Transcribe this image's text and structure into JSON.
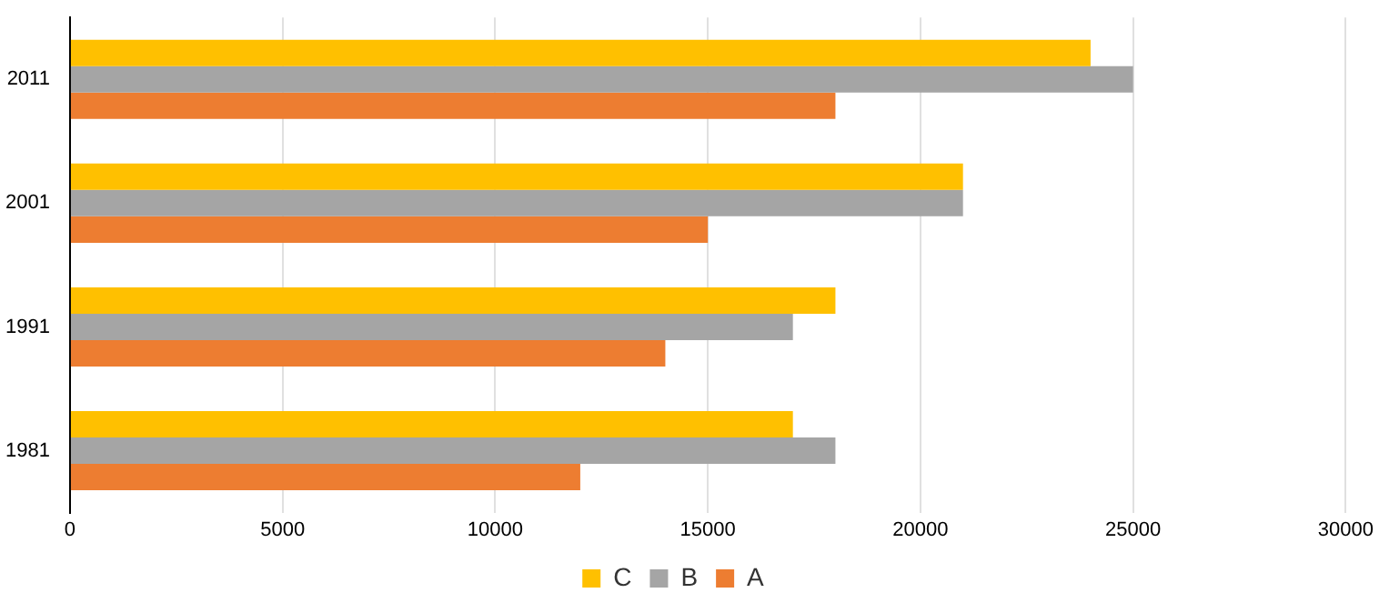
{
  "chart_data": {
    "type": "bar",
    "orientation": "horizontal",
    "categories": [
      "2011",
      "2001",
      "1991",
      "1981"
    ],
    "series": [
      {
        "name": "C",
        "color": "#ffc000",
        "values": [
          24000,
          21000,
          18000,
          17000
        ]
      },
      {
        "name": "B",
        "color": "#a5a5a5",
        "values": [
          25000,
          21000,
          17000,
          18000
        ]
      },
      {
        "name": "A",
        "color": "#ed7d31",
        "values": [
          18000,
          15000,
          14000,
          12000
        ]
      }
    ],
    "xlim": [
      0,
      30000
    ],
    "xticks": [
      0,
      5000,
      10000,
      15000,
      20000,
      25000,
      30000
    ],
    "grid": "x",
    "legend": "bottom"
  }
}
